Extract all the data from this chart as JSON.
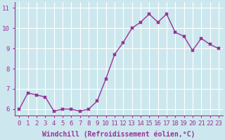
{
  "x": [
    0,
    1,
    2,
    3,
    4,
    5,
    6,
    7,
    8,
    9,
    10,
    11,
    12,
    13,
    14,
    15,
    16,
    17,
    18,
    19,
    20,
    21,
    22,
    23
  ],
  "y": [
    6.0,
    6.8,
    6.7,
    6.6,
    5.9,
    6.0,
    6.0,
    5.9,
    6.0,
    6.4,
    7.5,
    8.7,
    9.3,
    10.0,
    10.3,
    10.7,
    10.3,
    10.7,
    9.8,
    9.6,
    8.9,
    9.5,
    9.2,
    9.0
  ],
  "line_color": "#993399",
  "marker_color": "#993399",
  "bg_color": "#cce8ee",
  "grid_color": "#ffffff",
  "xlabel": "Windchill (Refroidissement éolien,°C)",
  "ylim": [
    5.7,
    11.3
  ],
  "xlim": [
    -0.5,
    23.5
  ],
  "yticks": [
    6,
    7,
    8,
    9,
    10,
    11
  ],
  "xticks": [
    0,
    1,
    2,
    3,
    4,
    5,
    6,
    7,
    8,
    9,
    10,
    11,
    12,
    13,
    14,
    15,
    16,
    17,
    18,
    19,
    20,
    21,
    22,
    23
  ],
  "xlabel_fontsize": 7,
  "tick_fontsize": 6.5,
  "line_width": 1.0,
  "marker_size": 2.5,
  "spine_color": "#993399",
  "text_color": "#993399"
}
